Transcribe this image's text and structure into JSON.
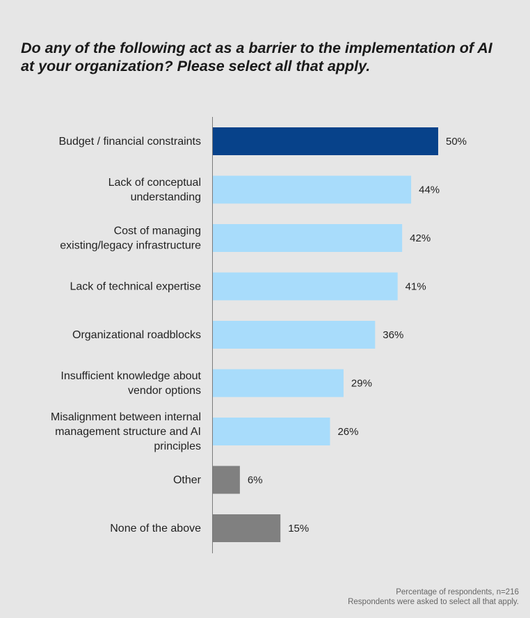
{
  "chart_data": {
    "type": "bar",
    "orientation": "horizontal",
    "title": "Do any of the following act as a barrier to the implementation of AI at your organization? Please select all that apply.",
    "categories": [
      [
        "Budget / financial constraints"
      ],
      [
        "Lack of conceptual",
        "understanding"
      ],
      [
        "Cost of managing",
        "existing/legacy infrastructure"
      ],
      [
        "Lack of technical expertise"
      ],
      [
        "Organizational roadblocks"
      ],
      [
        "Insufficient knowledge about",
        "vendor options"
      ],
      [
        "Misalignment between internal",
        "management structure and AI",
        "principles"
      ],
      [
        "Other"
      ],
      [
        "None of the above"
      ]
    ],
    "values": [
      50,
      44,
      42,
      41,
      36,
      29,
      26,
      6,
      15
    ],
    "value_labels": [
      "50%",
      "44%",
      "42%",
      "41%",
      "36%",
      "29%",
      "26%",
      "6%",
      "15%"
    ],
    "bar_colors": [
      "#07428a",
      "#a8dcfb",
      "#a8dcfb",
      "#a8dcfb",
      "#a8dcfb",
      "#a8dcfb",
      "#a8dcfb",
      "#808080",
      "#808080"
    ],
    "unit": "%",
    "xlim": [
      0,
      50
    ],
    "grid": false,
    "legend": "none"
  },
  "footnote": {
    "line1": "Percentage of respondents, n=216",
    "line2": "Respondents were asked to select all that apply."
  }
}
